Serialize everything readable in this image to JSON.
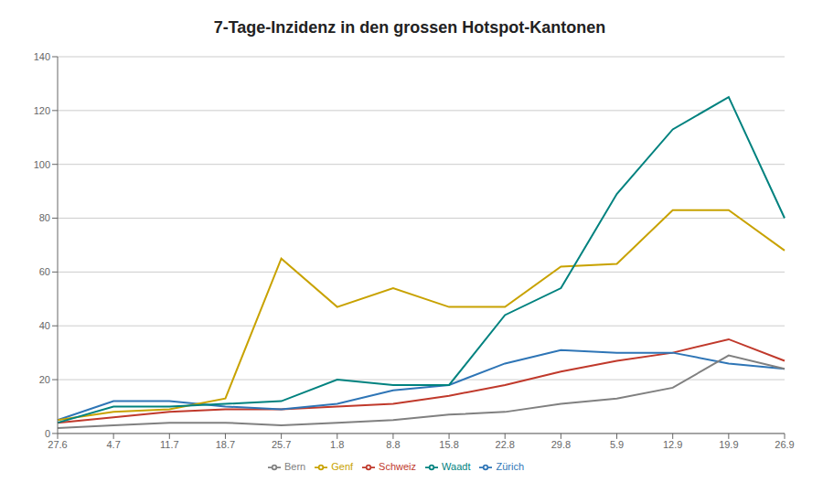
{
  "chart_data": {
    "type": "line",
    "title": "7-Tage-Inzidenz in den grossen Hotspot-Kantonen",
    "categories": [
      "27.6",
      "4.7",
      "11.7",
      "18.7",
      "25.7",
      "1.8",
      "8.8",
      "15.8",
      "22.8",
      "29.8",
      "5.9",
      "12.9",
      "19.9",
      "26.9"
    ],
    "series": [
      {
        "name": "Schweiz",
        "color": "#c0392b",
        "values": [
          4,
          6,
          8,
          9,
          9,
          10,
          11,
          14,
          18,
          23,
          27,
          30,
          35,
          27
        ]
      },
      {
        "name": "Zürich",
        "color": "#2e75b6",
        "values": [
          5,
          12,
          12,
          10,
          9,
          11,
          16,
          18,
          26,
          31,
          30,
          30,
          26,
          24
        ]
      },
      {
        "name": "Bern",
        "color": "#808080",
        "values": [
          2,
          3,
          4,
          4,
          3,
          4,
          5,
          7,
          8,
          11,
          13,
          17,
          29,
          24
        ]
      },
      {
        "name": "Genf",
        "color": "#c8a200",
        "values": [
          5,
          8,
          9,
          13,
          65,
          47,
          54,
          47,
          47,
          62,
          63,
          83,
          83,
          68
        ]
      },
      {
        "name": "Waadt",
        "color": "#00827f",
        "values": [
          4,
          10,
          10,
          11,
          12,
          20,
          18,
          18,
          44,
          54,
          89,
          113,
          125,
          80
        ]
      }
    ],
    "ylim": [
      0,
      140
    ],
    "yticks": [
      0,
      20,
      40,
      60,
      80,
      100,
      120,
      140
    ],
    "grid": true,
    "legend": "bottom"
  }
}
